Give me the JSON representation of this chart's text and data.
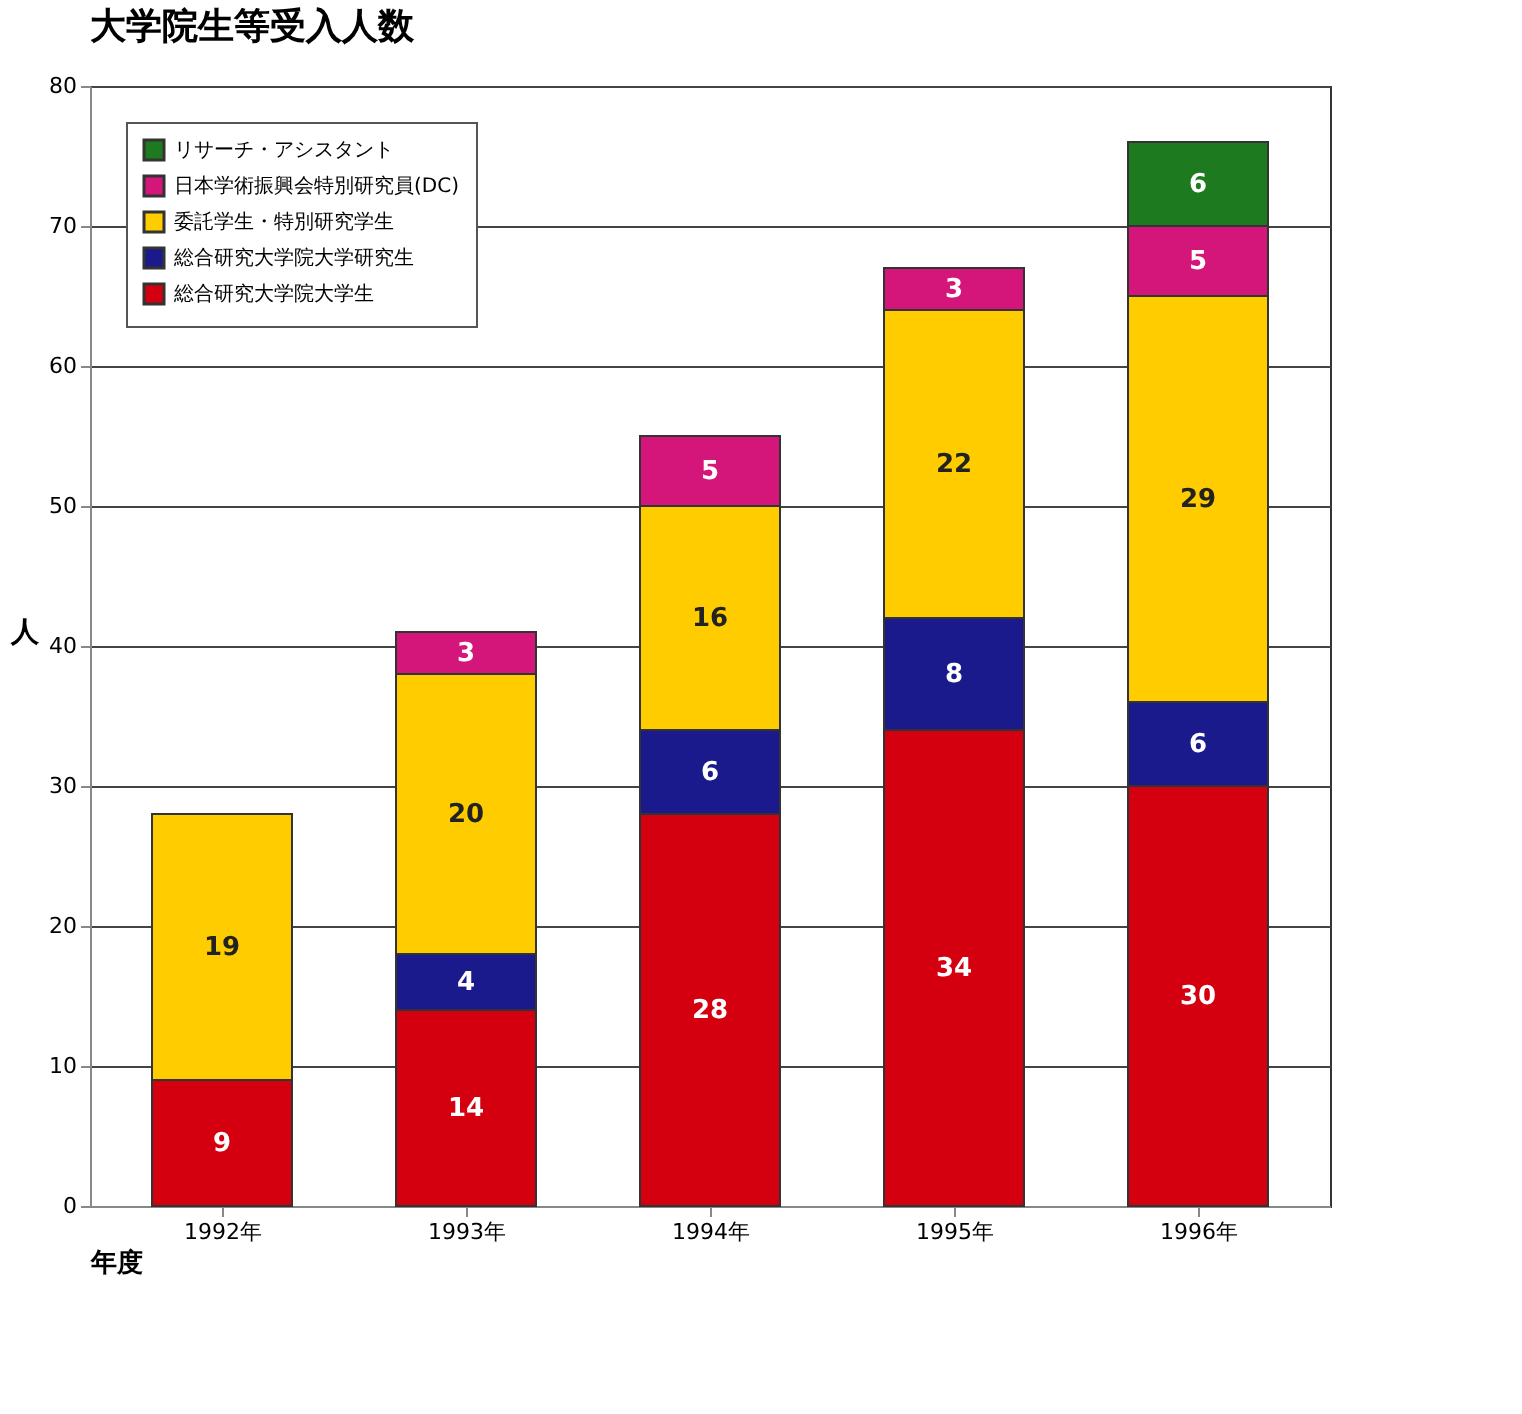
{
  "chart_data": {
    "type": "bar",
    "title": "大学院生等受入人数",
    "xlabel": "年度",
    "ylabel": "人",
    "categories": [
      "1992年",
      "1993年",
      "1994年",
      "1995年",
      "1996年"
    ],
    "stacked": true,
    "data_labels": true,
    "grid": "y",
    "legend": "top left",
    "ylim": [
      0,
      80
    ],
    "yticks": [
      0,
      10,
      20,
      30,
      40,
      50,
      60,
      70,
      80
    ],
    "series": [
      {
        "name": "総合研究大学院大学生",
        "color": "#d40010",
        "values": [
          9,
          14,
          28,
          34,
          30
        ]
      },
      {
        "name": "総合研究大学院大学研究生",
        "color": "#1a1a8c",
        "values": [
          null,
          4,
          6,
          8,
          6
        ]
      },
      {
        "name": "委託学生・特別研究学生",
        "color": "#ffcc00",
        "values": [
          19,
          20,
          16,
          22,
          29
        ]
      },
      {
        "name": "日本学術振興会特別研究員(DC)",
        "color": "#d4157a",
        "values": [
          null,
          3,
          5,
          3,
          5
        ]
      },
      {
        "name": "リサーチ・アシスタント",
        "color": "#1e7a1e",
        "values": [
          null,
          null,
          null,
          null,
          6
        ]
      }
    ]
  }
}
